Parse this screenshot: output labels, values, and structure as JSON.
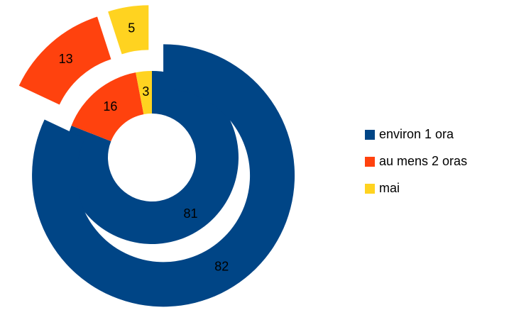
{
  "chart_data": {
    "type": "donut",
    "categories": [
      "environ 1 ora",
      "au mens 2 oras",
      "mai"
    ],
    "colors": [
      "#004586",
      "#ff420e",
      "#ffd320"
    ],
    "rings": [
      {
        "values": [
          81,
          16,
          3
        ]
      },
      {
        "values": [
          82,
          13,
          5
        ]
      }
    ],
    "legend": "right"
  }
}
